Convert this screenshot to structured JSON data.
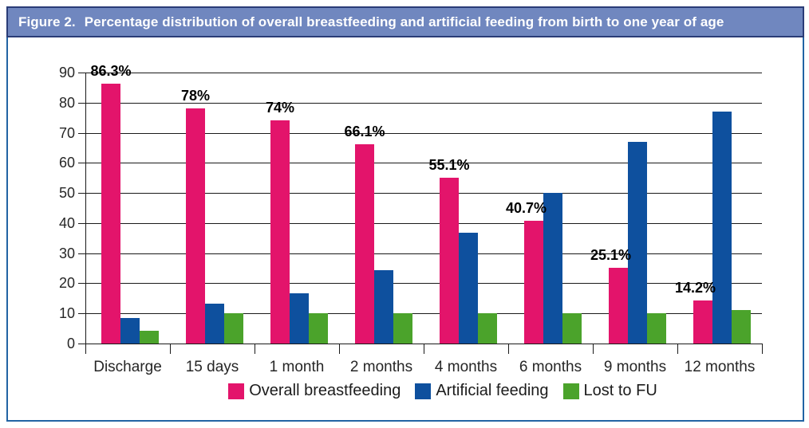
{
  "figure": {
    "title_prefix": "Figure 2.",
    "title": "Percentage distribution of overall breastfeeding and artificial feeding from birth to one year of age"
  },
  "colors": {
    "title_bar_bg": "#7087BF",
    "title_bar_border": "#2A3C77",
    "frame_border": "#2264A4",
    "gridline": "#1a1a1a",
    "breastfeeding_pink": "#E3146B",
    "artificial_blue": "#0E509E",
    "lost_green": "#4BA32B"
  },
  "chart_data": {
    "type": "bar",
    "title": "Percentage distribution of overall breastfeeding and artificial feeding from birth to one year of age",
    "categories": [
      "Discharge",
      "15 days",
      "1 month",
      "2 months",
      "4 months",
      "6 months",
      "9 months",
      "12 months"
    ],
    "series": [
      {
        "name": "Overall breastfeeding",
        "color": "#E3146B",
        "values": [
          86.3,
          78,
          74,
          66.1,
          55.1,
          40.7,
          25.1,
          14.2
        ],
        "data_labels": [
          "86.3%",
          "78%",
          "74%",
          "66.1%",
          "55.1%",
          "40.7%",
          "25.1%",
          "14.2%"
        ]
      },
      {
        "name": "Artificial feeding",
        "color": "#0E509E",
        "values": [
          8.5,
          13.3,
          16.7,
          24.3,
          36.8,
          50,
          67,
          77
        ]
      },
      {
        "name": "Lost to FU",
        "color": "#4BA32B",
        "values": [
          4.3,
          10,
          10,
          10,
          10,
          10,
          10,
          11
        ]
      }
    ],
    "xlabel": "",
    "ylabel": "",
    "y_ticks": [
      0,
      10,
      20,
      30,
      40,
      50,
      60,
      70,
      80,
      90
    ],
    "ylim": [
      0,
      90
    ],
    "grid": true,
    "legend_position": "bottom"
  }
}
